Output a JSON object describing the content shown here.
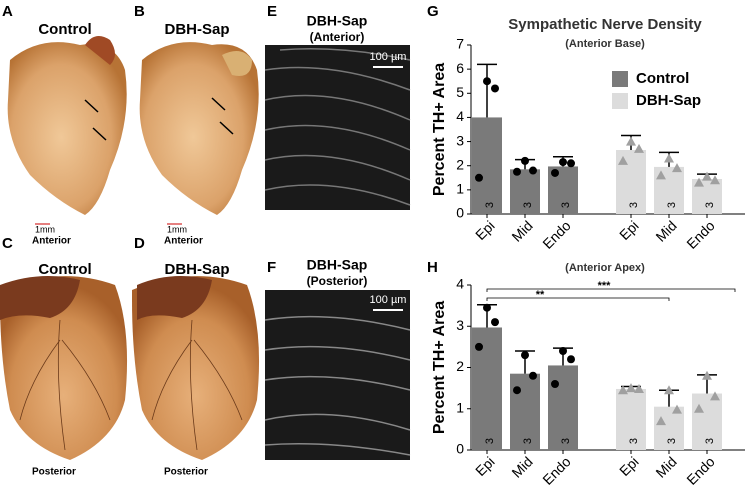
{
  "panels": {
    "letters": [
      "A",
      "B",
      "C",
      "D",
      "E",
      "F",
      "G",
      "H"
    ],
    "a": {
      "title": "Control",
      "scale": "1mm",
      "view": "Anterior"
    },
    "b": {
      "title": "DBH-Sap",
      "scale": "1mm",
      "view": "Anterior"
    },
    "c": {
      "title": "Control",
      "view": "Posterior"
    },
    "d": {
      "title": "DBH-Sap",
      "view": "Posterior"
    },
    "e": {
      "title": "DBH-Sap",
      "subtitle": "(Anterior)",
      "scale": "100 µm"
    },
    "f": {
      "title": "DBH-Sap",
      "subtitle": "(Posterior)",
      "scale": "100 µm"
    }
  },
  "chart_data": [
    {
      "type": "bar",
      "title": "Sympathetic Nerve Density",
      "subtitle": "(Anterior Base)",
      "ylabel": "Percent TH+ Area",
      "categories": [
        "Epi",
        "Mid",
        "Endo",
        "Epi",
        "Mid",
        "Endo"
      ],
      "n": [
        3,
        3,
        3,
        3,
        3,
        3
      ],
      "series": [
        {
          "name": "Control",
          "color": "#7a7a7a",
          "point_color": "#000000",
          "marker": "circle",
          "values": [
            4.0,
            1.85,
            1.97,
            null,
            null,
            null
          ],
          "errors": [
            2.2,
            0.4,
            0.4,
            null,
            null,
            null
          ],
          "points": [
            [
              5.5,
              5.2,
              1.5
            ],
            [
              2.2,
              1.8,
              1.75
            ],
            [
              2.15,
              2.1,
              1.7
            ],
            null,
            null,
            null
          ]
        },
        {
          "name": "DBH-Sap",
          "color": "#dcdcdc",
          "point_color": "#a0a0a0",
          "marker": "triangle",
          "values": [
            null,
            null,
            null,
            2.65,
            1.95,
            1.45
          ],
          "errors": [
            null,
            null,
            null,
            0.6,
            0.6,
            0.2
          ],
          "points": [
            null,
            null,
            null,
            [
              3.0,
              2.7,
              2.2
            ],
            [
              2.3,
              1.9,
              1.6
            ],
            [
              1.55,
              1.4,
              1.3
            ]
          ]
        }
      ],
      "ylim": [
        0,
        7
      ],
      "yticks": [
        0,
        1,
        2,
        3,
        4,
        5,
        6,
        7
      ],
      "legend": "upper-right"
    },
    {
      "type": "bar",
      "subtitle": "(Anterior Apex)",
      "ylabel": "Percent TH+ Area",
      "categories": [
        "Epi",
        "Mid",
        "Endo",
        "Epi",
        "Mid",
        "Endo"
      ],
      "n": [
        3,
        3,
        3,
        3,
        3,
        3
      ],
      "series": [
        {
          "name": "Control",
          "color": "#7a7a7a",
          "point_color": "#000000",
          "marker": "circle",
          "values": [
            2.97,
            1.85,
            2.05,
            null,
            null,
            null
          ],
          "errors": [
            0.55,
            0.55,
            0.42,
            null,
            null,
            null
          ],
          "points": [
            [
              3.45,
              3.1,
              2.5
            ],
            [
              2.3,
              1.8,
              1.45
            ],
            [
              2.4,
              2.2,
              1.6
            ],
            null,
            null,
            null
          ]
        },
        {
          "name": "DBH-Sap",
          "color": "#dcdcdc",
          "point_color": "#a0a0a0",
          "marker": "triangle",
          "values": [
            null,
            null,
            null,
            1.48,
            1.05,
            1.37
          ],
          "errors": [
            null,
            null,
            null,
            0.06,
            0.4,
            0.45
          ],
          "points": [
            null,
            null,
            null,
            [
              1.5,
              1.48,
              1.45
            ],
            [
              1.45,
              0.98,
              0.7
            ],
            [
              1.8,
              1.3,
              1.0
            ]
          ]
        }
      ],
      "ylim": [
        0,
        4
      ],
      "yticks": [
        0,
        1,
        2,
        3,
        4
      ],
      "annotations": [
        "**",
        "***"
      ]
    }
  ]
}
